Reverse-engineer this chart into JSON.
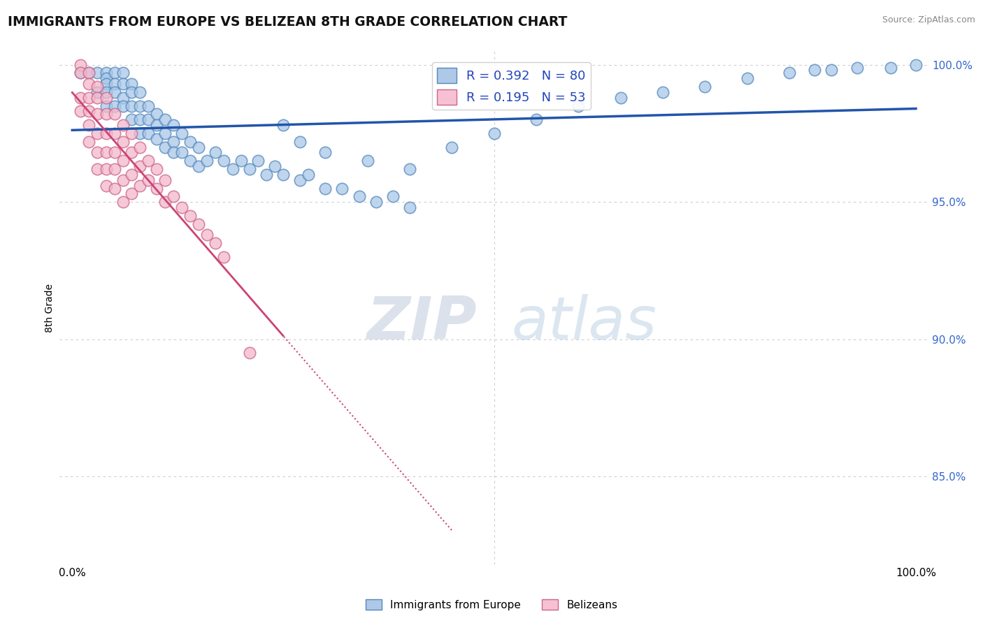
{
  "title": "IMMIGRANTS FROM EUROPE VS BELIZEAN 8TH GRADE CORRELATION CHART",
  "source": "Source: ZipAtlas.com",
  "ylabel": "8th Grade",
  "blue_R": 0.392,
  "blue_N": 80,
  "pink_R": 0.195,
  "pink_N": 53,
  "blue_color": "#a8c8e8",
  "pink_color": "#f4b8cc",
  "blue_edge_color": "#5588bb",
  "pink_edge_color": "#cc6688",
  "blue_line_color": "#2255aa",
  "pink_line_color": "#cc4477",
  "legend_blue_label": "Immigrants from Europe",
  "legend_pink_label": "Belizeans",
  "blue_scatter_x": [
    0.01,
    0.02,
    0.03,
    0.03,
    0.04,
    0.04,
    0.04,
    0.04,
    0.04,
    0.05,
    0.05,
    0.05,
    0.05,
    0.06,
    0.06,
    0.06,
    0.06,
    0.07,
    0.07,
    0.07,
    0.07,
    0.08,
    0.08,
    0.08,
    0.08,
    0.09,
    0.09,
    0.09,
    0.1,
    0.1,
    0.1,
    0.11,
    0.11,
    0.11,
    0.12,
    0.12,
    0.12,
    0.13,
    0.13,
    0.14,
    0.14,
    0.15,
    0.15,
    0.16,
    0.17,
    0.18,
    0.19,
    0.2,
    0.21,
    0.22,
    0.23,
    0.24,
    0.25,
    0.27,
    0.28,
    0.3,
    0.32,
    0.34,
    0.36,
    0.38,
    0.4,
    0.25,
    0.27,
    0.3,
    0.35,
    0.4,
    0.45,
    0.5,
    0.55,
    0.6,
    0.65,
    0.7,
    0.75,
    0.8,
    0.85,
    0.88,
    0.9,
    0.93,
    0.97,
    1.0
  ],
  "blue_scatter_y": [
    0.997,
    0.997,
    0.997,
    0.99,
    0.997,
    0.995,
    0.993,
    0.99,
    0.985,
    0.997,
    0.993,
    0.99,
    0.985,
    0.997,
    0.993,
    0.988,
    0.985,
    0.993,
    0.99,
    0.985,
    0.98,
    0.99,
    0.985,
    0.98,
    0.975,
    0.985,
    0.98,
    0.975,
    0.982,
    0.978,
    0.973,
    0.98,
    0.975,
    0.97,
    0.978,
    0.972,
    0.968,
    0.975,
    0.968,
    0.972,
    0.965,
    0.97,
    0.963,
    0.965,
    0.968,
    0.965,
    0.962,
    0.965,
    0.962,
    0.965,
    0.96,
    0.963,
    0.96,
    0.958,
    0.96,
    0.955,
    0.955,
    0.952,
    0.95,
    0.952,
    0.948,
    0.978,
    0.972,
    0.968,
    0.965,
    0.962,
    0.97,
    0.975,
    0.98,
    0.985,
    0.988,
    0.99,
    0.992,
    0.995,
    0.997,
    0.998,
    0.998,
    0.999,
    0.999,
    1.0
  ],
  "pink_scatter_x": [
    0.01,
    0.01,
    0.01,
    0.01,
    0.02,
    0.02,
    0.02,
    0.02,
    0.02,
    0.02,
    0.03,
    0.03,
    0.03,
    0.03,
    0.03,
    0.03,
    0.04,
    0.04,
    0.04,
    0.04,
    0.04,
    0.04,
    0.05,
    0.05,
    0.05,
    0.05,
    0.05,
    0.06,
    0.06,
    0.06,
    0.06,
    0.06,
    0.07,
    0.07,
    0.07,
    0.07,
    0.08,
    0.08,
    0.08,
    0.09,
    0.09,
    0.1,
    0.1,
    0.11,
    0.11,
    0.12,
    0.13,
    0.14,
    0.15,
    0.16,
    0.17,
    0.18,
    0.21
  ],
  "pink_scatter_y": [
    1.0,
    0.997,
    0.988,
    0.983,
    0.997,
    0.993,
    0.988,
    0.983,
    0.978,
    0.972,
    0.992,
    0.988,
    0.982,
    0.975,
    0.968,
    0.962,
    0.988,
    0.982,
    0.975,
    0.968,
    0.962,
    0.956,
    0.982,
    0.975,
    0.968,
    0.962,
    0.955,
    0.978,
    0.972,
    0.965,
    0.958,
    0.95,
    0.975,
    0.968,
    0.96,
    0.953,
    0.97,
    0.963,
    0.956,
    0.965,
    0.958,
    0.962,
    0.955,
    0.958,
    0.95,
    0.952,
    0.948,
    0.945,
    0.942,
    0.938,
    0.935,
    0.93,
    0.895
  ],
  "watermark_zip": "ZIP",
  "watermark_atlas": "atlas",
  "grid_color": "#cccccc"
}
